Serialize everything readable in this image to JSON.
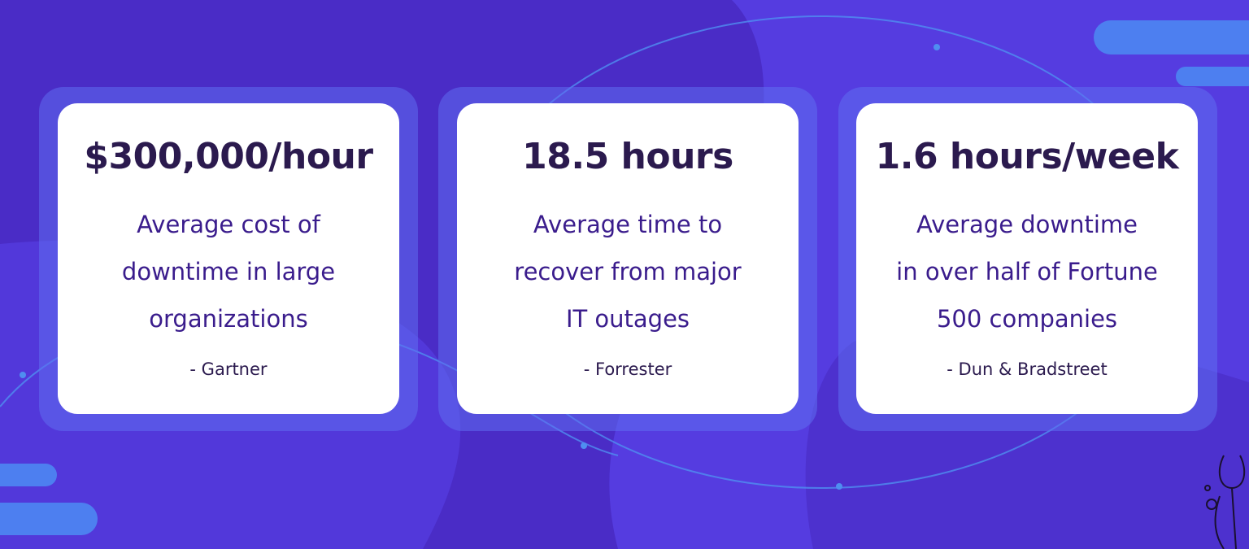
{
  "cards": [
    {
      "stat": "$300,000/hour",
      "description": [
        "Average cost of",
        "downtime in large",
        "organizations"
      ],
      "source": "- Gartner"
    },
    {
      "stat": "18.5 hours",
      "description": [
        "Average time to",
        "recover from major",
        "IT outages"
      ],
      "source": "- Forrester"
    },
    {
      "stat": "1.6 hours/week",
      "description": [
        "Average downtime",
        "in over half of Fortune",
        "500 companies"
      ],
      "source": "- Dun & Bradstreet"
    }
  ]
}
